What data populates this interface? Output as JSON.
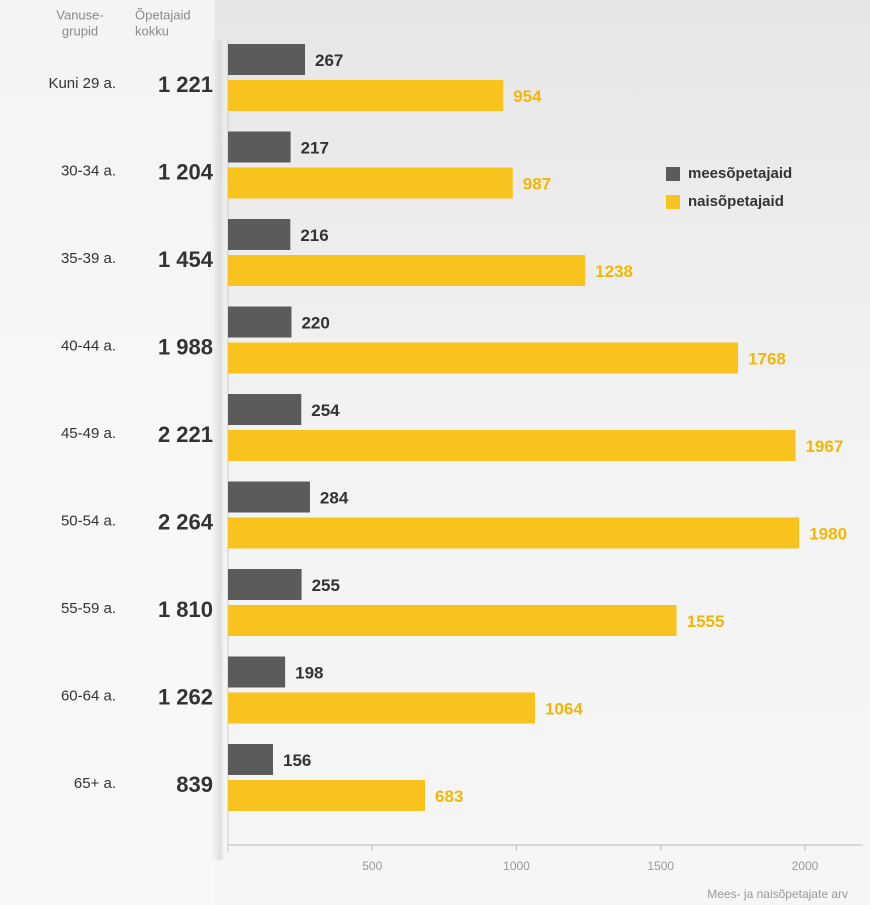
{
  "chart_data": {
    "type": "bar",
    "orientation": "horizontal",
    "column_headers": [
      [
        "Vanuse-",
        "grupid"
      ],
      [
        "Õpetajaid",
        "kokku"
      ]
    ],
    "categories": [
      "Kuni 29 a.",
      "30-34 a.",
      "35-39 a.",
      "40-44 a.",
      "45-49 a.",
      "50-54 a.",
      "55-59 a.",
      "60-64 a.",
      "65+ a."
    ],
    "totals": [
      "1 221",
      "1 204",
      "1 454",
      "1 988",
      "2 221",
      "2 264",
      "1 810",
      "1 262",
      "839"
    ],
    "series": [
      {
        "name": "meesõpetajaid",
        "color": "#5b5b5b",
        "label_color": "#333333",
        "values": [
          267,
          217,
          216,
          220,
          254,
          284,
          255,
          198,
          156
        ]
      },
      {
        "name": "naisõpetajaid",
        "color": "#f7c31c",
        "label_color": "#f2b705",
        "values": [
          954,
          987,
          1238,
          1768,
          1967,
          1980,
          1555,
          1064,
          683
        ]
      }
    ],
    "xlim": [
      0,
      2200
    ],
    "xticks": [
      500,
      1000,
      1500,
      2000
    ],
    "xlabel": "Mees- ja naisõpetajate arv",
    "legend": "top-right"
  }
}
